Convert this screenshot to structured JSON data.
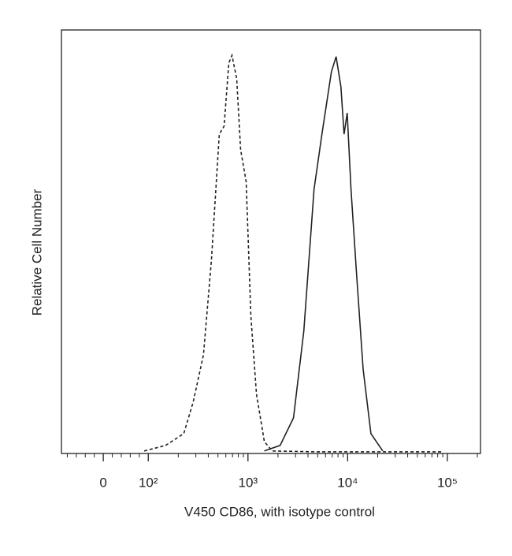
{
  "chart_data": {
    "type": "line",
    "y_label": "Relative Cell Number",
    "x_label": "V450 CD86, with isotype control",
    "xscale": "biexponential",
    "xlim": [
      -93,
      215000
    ],
    "ylim": [
      0,
      100
    ],
    "xticks": [
      0,
      {
        "value": 100,
        "label": "10²"
      },
      {
        "value": 1000,
        "label": "10³"
      },
      {
        "value": 10000,
        "label": "10⁴"
      },
      {
        "value": 100000,
        "label": "10⁵"
      }
    ],
    "xminorticks": [
      -80,
      -60,
      -40,
      -20,
      20,
      40,
      60,
      80,
      200,
      300,
      400,
      500,
      600,
      700,
      800,
      900,
      2000,
      3000,
      4000,
      5000,
      6000,
      7000,
      8000,
      9000,
      20000,
      30000,
      40000,
      50000,
      60000,
      70000,
      80000,
      90000,
      200000
    ],
    "series": [
      {
        "color": "#222222",
        "dash": true,
        "x": [
          91,
          149,
          227,
          282,
          358,
          430,
          516,
          576,
          643,
          691,
          771,
          844,
          959,
          1070,
          1216,
          1459,
          1750,
          4770,
          29500,
          88100
        ],
        "values": [
          0.6,
          1.9,
          4.7,
          12.1,
          23.3,
          45.6,
          75.4,
          77.3,
          92.2,
          94,
          88.5,
          71.7,
          64.2,
          32.4,
          14,
          2.8,
          0.6,
          0.4,
          0.4,
          0.4
        ]
      },
      {
        "color": "#222222",
        "dash": false,
        "x": [
          1459,
          2100,
          2860,
          3630,
          4600,
          5520,
          6870,
          7660,
          8550,
          9200,
          9890,
          10800,
          12300,
          14300,
          17100,
          22500
        ],
        "values": [
          0.6,
          1.9,
          8.4,
          28.9,
          62.4,
          75.4,
          90.1,
          93.7,
          86.6,
          75.4,
          80.4,
          62.4,
          42.3,
          19.9,
          4.7,
          0.6
        ]
      }
    ]
  }
}
